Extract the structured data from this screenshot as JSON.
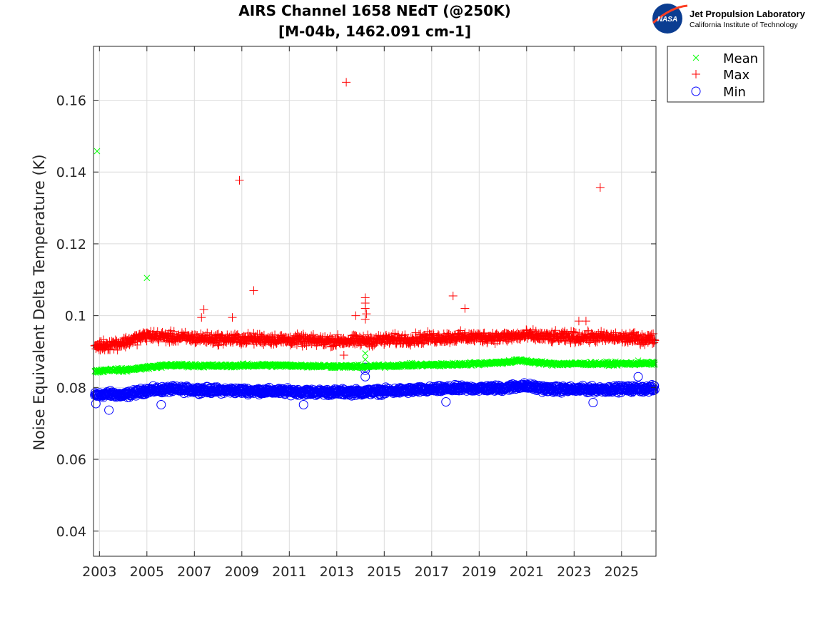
{
  "chart_data": {
    "type": "scatter",
    "title": "AIRS Channel 1658 NEdT (@250K)",
    "subtitle": "[M-04b, 1462.091 cm-1]",
    "xlabel": "",
    "ylabel": "Noise Equivalent Delta Temperature (K)",
    "xlim": [
      2002.75,
      2026.45
    ],
    "ylim": [
      0.033,
      0.175
    ],
    "x_ticks": [
      2003,
      2005,
      2007,
      2009,
      2011,
      2013,
      2015,
      2017,
      2019,
      2021,
      2023,
      2025
    ],
    "x_tick_labels": [
      "2003",
      "2005",
      "2007",
      "2009",
      "2011",
      "2013",
      "2015",
      "2017",
      "2019",
      "2021",
      "2023",
      "2025"
    ],
    "y_ticks": [
      0.04,
      0.06,
      0.08,
      0.1,
      0.12,
      0.14,
      0.16
    ],
    "y_tick_labels": [
      "0.04",
      "0.06",
      "0.08",
      "0.1",
      "0.12",
      "0.14",
      "0.16"
    ],
    "grid": true,
    "legend_position": "outside-top-right",
    "series": [
      {
        "name": "Mean",
        "marker": "x",
        "color": "#00ff00",
        "trend": [
          [
            2002.8,
            0.0845
          ],
          [
            2003.5,
            0.085
          ],
          [
            2004.0,
            0.0848
          ],
          [
            2005.0,
            0.0856
          ],
          [
            2006.0,
            0.0862
          ],
          [
            2008.0,
            0.086
          ],
          [
            2010.0,
            0.0862
          ],
          [
            2012.0,
            0.086
          ],
          [
            2014.0,
            0.0858
          ],
          [
            2016.0,
            0.0862
          ],
          [
            2018.0,
            0.0864
          ],
          [
            2020.0,
            0.087
          ],
          [
            2020.7,
            0.0875
          ],
          [
            2022.0,
            0.0866
          ],
          [
            2024.0,
            0.0866
          ],
          [
            2026.4,
            0.0867
          ]
        ],
        "spread": 0.0007,
        "outliers": [
          [
            2002.9,
            0.1458
          ],
          [
            2005.0,
            0.1105
          ],
          [
            2014.2,
            0.0895
          ],
          [
            2014.2,
            0.0878
          ],
          [
            2025.7,
            0.0875
          ]
        ]
      },
      {
        "name": "Max",
        "marker": "+",
        "color": "#ff0000",
        "trend": [
          [
            2002.8,
            0.0915
          ],
          [
            2003.5,
            0.092
          ],
          [
            2004.0,
            0.0925
          ],
          [
            2005.0,
            0.0945
          ],
          [
            2006.0,
            0.094
          ],
          [
            2008.0,
            0.0935
          ],
          [
            2010.0,
            0.0935
          ],
          [
            2012.0,
            0.093
          ],
          [
            2014.0,
            0.093
          ],
          [
            2016.0,
            0.0935
          ],
          [
            2018.0,
            0.094
          ],
          [
            2020.0,
            0.094
          ],
          [
            2021.0,
            0.0945
          ],
          [
            2022.0,
            0.094
          ],
          [
            2024.0,
            0.094
          ],
          [
            2026.4,
            0.0935
          ]
        ],
        "spread": 0.0022,
        "outliers": [
          [
            2013.4,
            0.165
          ],
          [
            2008.9,
            0.1377
          ],
          [
            2024.1,
            0.1357
          ],
          [
            2009.5,
            0.107
          ],
          [
            2017.9,
            0.1055
          ],
          [
            2014.2,
            0.105
          ],
          [
            2018.4,
            0.102
          ],
          [
            2007.4,
            0.1017
          ],
          [
            2014.2,
            0.1035
          ],
          [
            2014.2,
            0.102
          ],
          [
            2014.25,
            0.1005
          ],
          [
            2013.8,
            0.1
          ],
          [
            2008.6,
            0.0995
          ],
          [
            2007.3,
            0.0995
          ],
          [
            2023.2,
            0.0985
          ],
          [
            2023.5,
            0.0985
          ],
          [
            2013.3,
            0.089
          ],
          [
            2014.2,
            0.099
          ]
        ]
      },
      {
        "name": "Min",
        "marker": "o",
        "color": "#0000ff",
        "trend": [
          [
            2002.8,
            0.0778
          ],
          [
            2003.5,
            0.0782
          ],
          [
            2004.0,
            0.0778
          ],
          [
            2005.0,
            0.0792
          ],
          [
            2006.0,
            0.0795
          ],
          [
            2008.0,
            0.0792
          ],
          [
            2010.0,
            0.079
          ],
          [
            2012.0,
            0.0787
          ],
          [
            2014.0,
            0.0787
          ],
          [
            2016.0,
            0.0792
          ],
          [
            2018.0,
            0.0797
          ],
          [
            2020.0,
            0.0798
          ],
          [
            2020.8,
            0.0805
          ],
          [
            2022.0,
            0.0795
          ],
          [
            2024.0,
            0.0795
          ],
          [
            2026.4,
            0.0797
          ]
        ],
        "spread": 0.0013,
        "outliers": [
          [
            2003.4,
            0.0737
          ],
          [
            2014.2,
            0.0856
          ],
          [
            2014.2,
            0.0848
          ],
          [
            2014.2,
            0.083
          ],
          [
            2025.7,
            0.083
          ],
          [
            2005.6,
            0.0752
          ],
          [
            2011.6,
            0.0752
          ],
          [
            2017.6,
            0.076
          ],
          [
            2023.8,
            0.0758
          ],
          [
            2002.85,
            0.0755
          ]
        ]
      }
    ]
  },
  "logo": {
    "org_name": "Jet Propulsion Laboratory",
    "org_sub": "California Institute of Technology",
    "badge_text": "NASA",
    "badge_color": "#0b3d91",
    "accent_color": "#fc3d21"
  }
}
